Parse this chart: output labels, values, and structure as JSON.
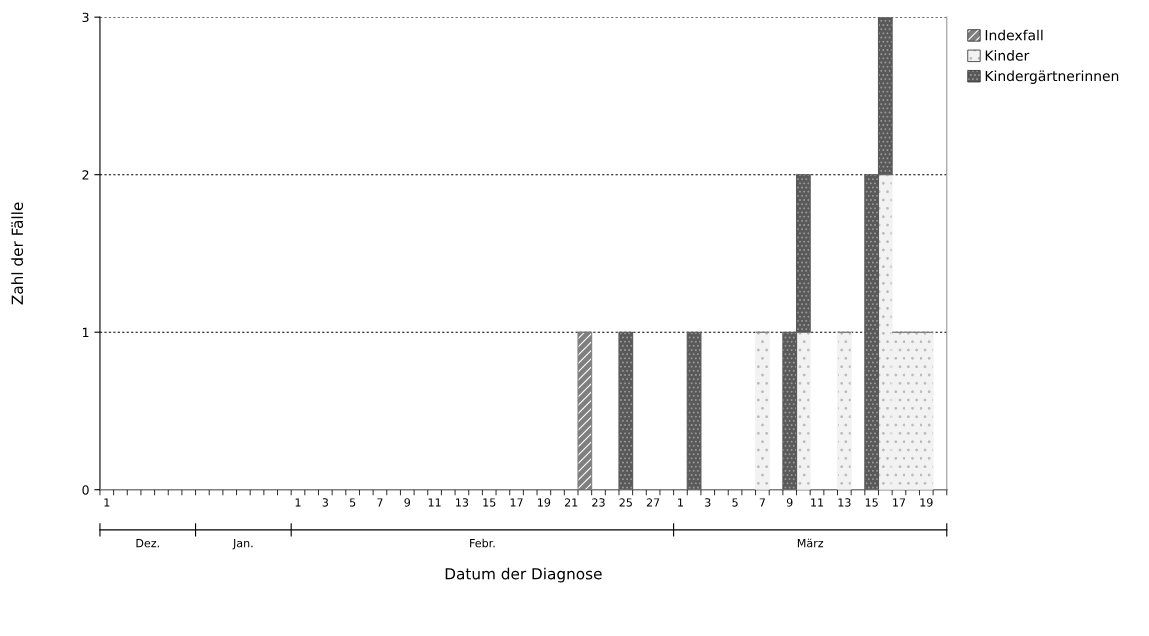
{
  "chart_data": {
    "type": "bar",
    "stacked": true,
    "xlabel": "Datum der Diagnose",
    "ylabel": "Zahl der Fälle",
    "categories": [
      "1",
      null,
      null,
      null,
      null,
      null,
      null,
      null,
      null,
      null,
      null,
      null,
      null,
      null,
      "1",
      null,
      "3",
      null,
      "5",
      null,
      "7",
      null,
      "9",
      null,
      "11",
      null,
      "13",
      null,
      "15",
      null,
      "17",
      null,
      "19",
      null,
      "21",
      null,
      "23",
      null,
      "25",
      null,
      "27",
      null,
      "1",
      null,
      "3",
      null,
      "5",
      null,
      "7",
      null,
      "9",
      null,
      "11",
      null,
      "13",
      null,
      "15",
      null,
      "17",
      null,
      "19",
      null
    ],
    "series": [
      {
        "name": "Indexfall",
        "color": "#7f7f7f",
        "values": [
          0,
          0,
          0,
          0,
          0,
          0,
          0,
          0,
          0,
          0,
          0,
          0,
          0,
          0,
          0,
          0,
          0,
          0,
          0,
          0,
          0,
          0,
          0,
          0,
          0,
          0,
          0,
          0,
          0,
          0,
          0,
          0,
          0,
          0,
          0,
          1,
          0,
          0,
          0,
          0,
          0,
          0,
          0,
          0,
          0,
          0,
          0,
          0,
          0,
          0,
          0,
          0,
          0,
          0,
          0,
          0,
          0,
          0,
          0,
          0,
          0,
          0
        ]
      },
      {
        "name": "Kinder",
        "color": "#f2f2f2",
        "values": [
          0,
          0,
          0,
          0,
          0,
          0,
          0,
          0,
          0,
          0,
          0,
          0,
          0,
          0,
          0,
          0,
          0,
          0,
          0,
          0,
          0,
          0,
          0,
          0,
          0,
          0,
          0,
          0,
          0,
          0,
          0,
          0,
          0,
          0,
          0,
          0,
          0,
          0,
          0,
          0,
          0,
          0,
          0,
          0,
          0,
          0,
          0,
          0,
          1,
          0,
          0,
          1,
          0,
          0,
          1,
          0,
          0,
          2,
          1,
          1,
          1,
          0
        ]
      },
      {
        "name": "Kindergärtnerinnen",
        "color": "#595959",
        "values": [
          0,
          0,
          0,
          0,
          0,
          0,
          0,
          0,
          0,
          0,
          0,
          0,
          0,
          0,
          0,
          0,
          0,
          0,
          0,
          0,
          0,
          0,
          0,
          0,
          0,
          0,
          0,
          0,
          0,
          0,
          0,
          0,
          0,
          0,
          0,
          0,
          0,
          0,
          1,
          0,
          0,
          0,
          0,
          1,
          0,
          0,
          0,
          0,
          0,
          0,
          1,
          1,
          0,
          0,
          0,
          0,
          2,
          1,
          0,
          0,
          0,
          0
        ]
      }
    ],
    "ylim": [
      0,
      3
    ],
    "yticks": [
      0,
      1,
      2,
      3
    ],
    "grid": "y",
    "legend": "top right",
    "annotations": [
      "Dez.",
      "Jan.",
      "Febr.",
      "März"
    ]
  }
}
